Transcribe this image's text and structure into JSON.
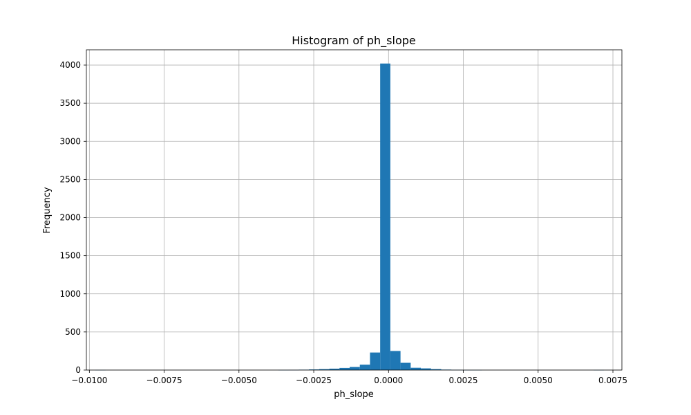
{
  "chart_data": {
    "type": "bar",
    "title": "Histogram of ph_slope",
    "xlabel": "ph_slope",
    "ylabel": "Frequency",
    "xlim": [
      -0.0101,
      0.0078
    ],
    "ylim": [
      0,
      4200
    ],
    "grid": true,
    "bar_color": "#1f77b4",
    "x_ticks": [
      {
        "value": -0.01,
        "label": "−0.0100"
      },
      {
        "value": -0.0075,
        "label": "−0.0075"
      },
      {
        "value": -0.005,
        "label": "−0.0050"
      },
      {
        "value": -0.0025,
        "label": "−0.0025"
      },
      {
        "value": 0.0,
        "label": "0.0000"
      },
      {
        "value": 0.0025,
        "label": "0.0025"
      },
      {
        "value": 0.005,
        "label": "0.0050"
      },
      {
        "value": 0.0075,
        "label": "0.0075"
      }
    ],
    "y_ticks": [
      {
        "value": 0,
        "label": "0"
      },
      {
        "value": 500,
        "label": "500"
      },
      {
        "value": 1000,
        "label": "1000"
      },
      {
        "value": 1500,
        "label": "1500"
      },
      {
        "value": 2000,
        "label": "2000"
      },
      {
        "value": 2500,
        "label": "2500"
      },
      {
        "value": 3000,
        "label": "3000"
      },
      {
        "value": 3500,
        "label": "3500"
      },
      {
        "value": 4000,
        "label": "4000"
      }
    ],
    "bin_edges": [
      -0.0098,
      -0.00946,
      -0.00912,
      -0.00878,
      -0.00844,
      -0.0081,
      -0.00776,
      -0.00742,
      -0.00708,
      -0.00674,
      -0.0064,
      -0.00606,
      -0.00572,
      -0.00538,
      -0.00504,
      -0.0047,
      -0.00436,
      -0.00402,
      -0.00368,
      -0.00334,
      -0.003,
      -0.00266,
      -0.00232,
      -0.00198,
      -0.00164,
      -0.0013,
      -0.00096,
      -0.00062,
      -0.00028,
      6e-05,
      0.0004,
      0.00074,
      0.00108,
      0.00142,
      0.00176,
      0.0021,
      0.00244,
      0.00278,
      0.00312,
      0.00346,
      0.0038,
      0.00414,
      0.00448,
      0.00482,
      0.00516,
      0.0055,
      0.00584,
      0.00618,
      0.00652,
      0.00686,
      0.0072
    ],
    "counts": [
      1,
      0,
      0,
      0,
      0,
      0,
      0,
      0,
      0,
      0,
      0,
      0,
      0,
      0,
      0,
      0,
      0,
      0,
      1,
      2,
      5,
      8,
      12,
      18,
      28,
      40,
      70,
      230,
      4020,
      250,
      95,
      30,
      22,
      12,
      6,
      3,
      1,
      1,
      0,
      0,
      0,
      0,
      0,
      0,
      0,
      0,
      0,
      0,
      0,
      1
    ]
  }
}
